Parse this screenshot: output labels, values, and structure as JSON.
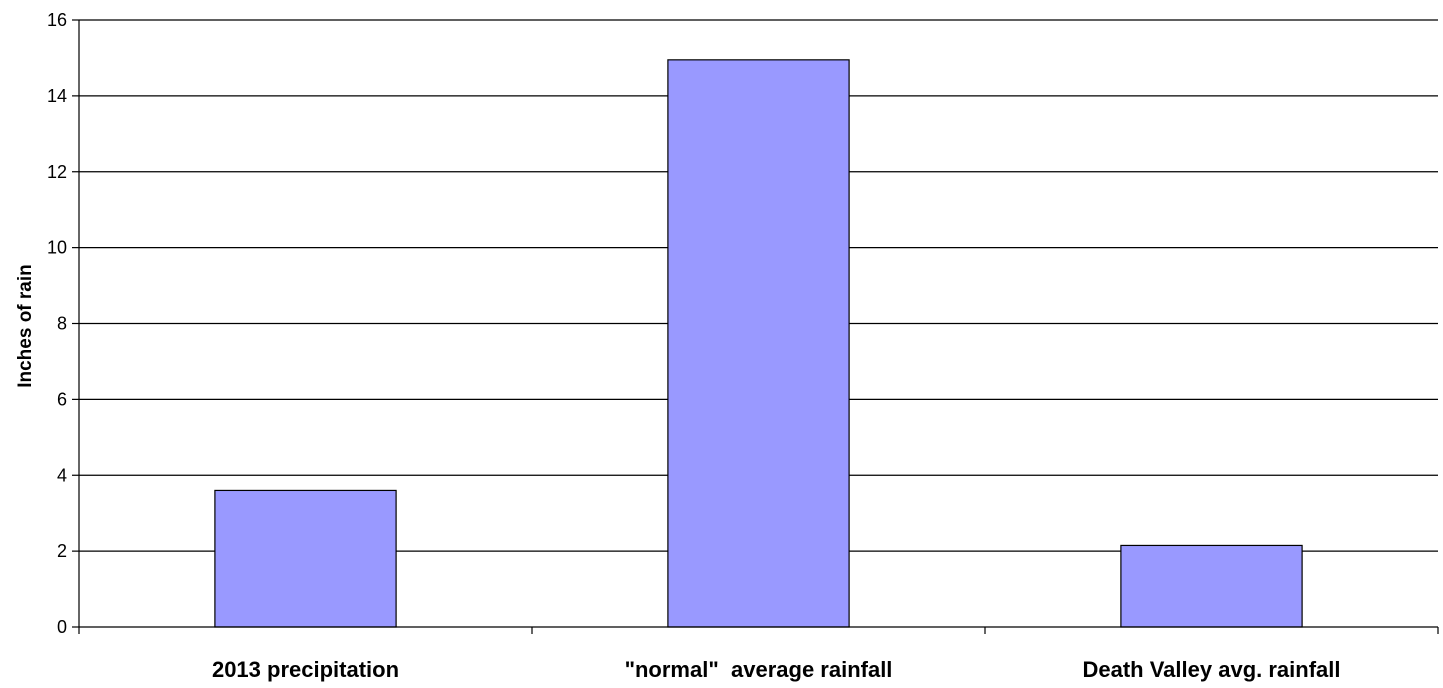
{
  "chart_data": {
    "type": "bar",
    "title": "",
    "xlabel": "",
    "ylabel": "Inches of rain",
    "categories": [
      "2013 precipitation",
      "\"normal\"  average rainfall",
      "Death Valley avg. rainfall"
    ],
    "values": [
      3.6,
      14.95,
      2.15
    ],
    "ylim": [
      0,
      16
    ],
    "yticks": [
      "0",
      "2",
      "4",
      "6",
      "8",
      "10",
      "12",
      "14",
      "16"
    ],
    "grid": true,
    "bar_color": "#9999ff",
    "legend": "none"
  }
}
